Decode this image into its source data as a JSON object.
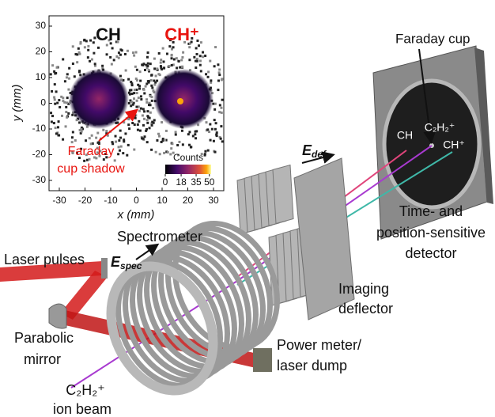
{
  "inset": {
    "x_label": "x (mm)",
    "y_label": "y (mm)",
    "xlim": [
      -34,
      34
    ],
    "ylim": [
      -34,
      34
    ],
    "xticks": [
      -30,
      -20,
      -10,
      0,
      10,
      20,
      30
    ],
    "yticks": [
      -30,
      -20,
      -10,
      0,
      10,
      20,
      30
    ],
    "species": [
      "CH",
      "CH⁺"
    ],
    "shadow_label": [
      "Faraday",
      "cup shadow"
    ],
    "colorbar": {
      "title": "Counts",
      "lim": [
        0,
        52
      ],
      "ticks": [
        0,
        18,
        35,
        50
      ]
    }
  },
  "detector": {
    "title": "Faraday cup",
    "hits": [
      "CH",
      "C₂H₂⁺",
      "CH⁺"
    ],
    "label": [
      "Time- and",
      "position-sensitive",
      "detector"
    ]
  },
  "spectrometer": {
    "label": "Spectrometer",
    "field": {
      "symbol": "E",
      "sub": "spec"
    }
  },
  "deflector": {
    "label": [
      "Imaging",
      "deflector"
    ],
    "field": {
      "symbol": "E",
      "sub": "def"
    }
  },
  "laser": {
    "label": "Laser pulses"
  },
  "mirror": {
    "label": [
      "Parabolic",
      "mirror"
    ]
  },
  "dump": {
    "label": [
      "Power meter/",
      "laser dump"
    ]
  },
  "ion_beam": {
    "label": [
      "C₂H₂⁺",
      "ion beam"
    ]
  }
}
